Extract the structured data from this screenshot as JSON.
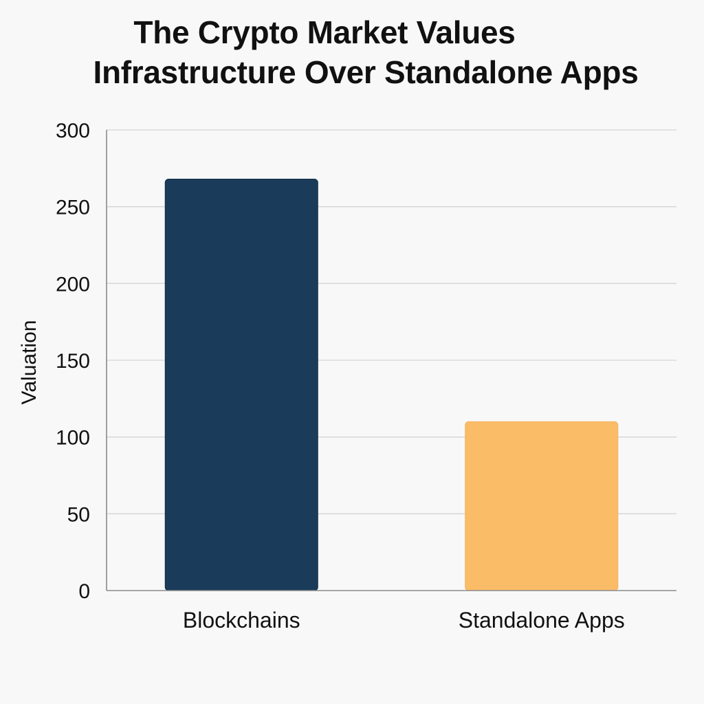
{
  "chart_data": {
    "type": "bar",
    "title_lines": [
      "The Crypto Market Values",
      "Infrastructure Over Standalone Apps"
    ],
    "categories": [
      "Blockchains",
      "Standalone Apps"
    ],
    "values": [
      268,
      110
    ],
    "colors": [
      "#1a3c5a",
      "#fbbc68"
    ],
    "xlabel": "",
    "ylabel": "Valuation",
    "ylim": [
      0,
      300
    ],
    "yticks": [
      "0",
      "50",
      "100",
      "150",
      "200",
      "250",
      "300"
    ],
    "grid": true,
    "legend": "none"
  }
}
